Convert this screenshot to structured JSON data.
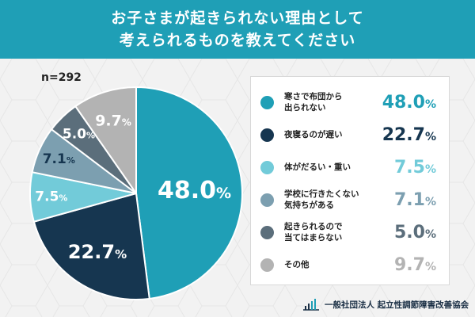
{
  "header": {
    "title_line1": "お子さまが起きられない理由として",
    "title_line2": "考えられるものを教えてください"
  },
  "sample": "n=292",
  "chart_data": {
    "type": "pie",
    "slices": [
      {
        "label": "寒さで布団から出られない",
        "legend_lines": [
          "寒さで布団から",
          "出られない"
        ],
        "value": 48.0,
        "value_text": "48.0",
        "color": "#1f9fb6",
        "label_color": "#ffffff"
      },
      {
        "label": "夜寝るのが遅い",
        "legend_lines": [
          "夜寝るのが遅い"
        ],
        "value": 22.7,
        "value_text": "22.7",
        "color": "#163650",
        "label_color": "#ffffff"
      },
      {
        "label": "体がだるい・重い",
        "legend_lines": [
          "体がだるい・重い"
        ],
        "value": 7.5,
        "value_text": "7.5",
        "color": "#72cbd9",
        "label_color": "#ffffff"
      },
      {
        "label": "学校に行きたくない気持ちがある",
        "legend_lines": [
          "学校に行きたくない",
          "気持ちがある"
        ],
        "value": 7.1,
        "value_text": "7.1",
        "color": "#7c9fb0",
        "label_color": "#163650"
      },
      {
        "label": "起きられるので当てはまらない",
        "legend_lines": [
          "起きられるので",
          "当てはまらない"
        ],
        "value": 5.0,
        "value_text": "5.0",
        "color": "#5b6e7b",
        "label_color": "#ffffff"
      },
      {
        "label": "その他",
        "legend_lines": [
          "その他"
        ],
        "value": 9.7,
        "value_text": "9.7",
        "color": "#b3b3b3",
        "label_color": "#ffffff"
      }
    ],
    "percent_sign": "%"
  },
  "legend_value_colors": [
    "#1f9fb6",
    "#163650",
    "#72cbd9",
    "#7c9fb0",
    "#5b6e7b",
    "#b3b3b3"
  ],
  "footer": {
    "org": "一般社団法人 起立性調節障害改善協会"
  }
}
